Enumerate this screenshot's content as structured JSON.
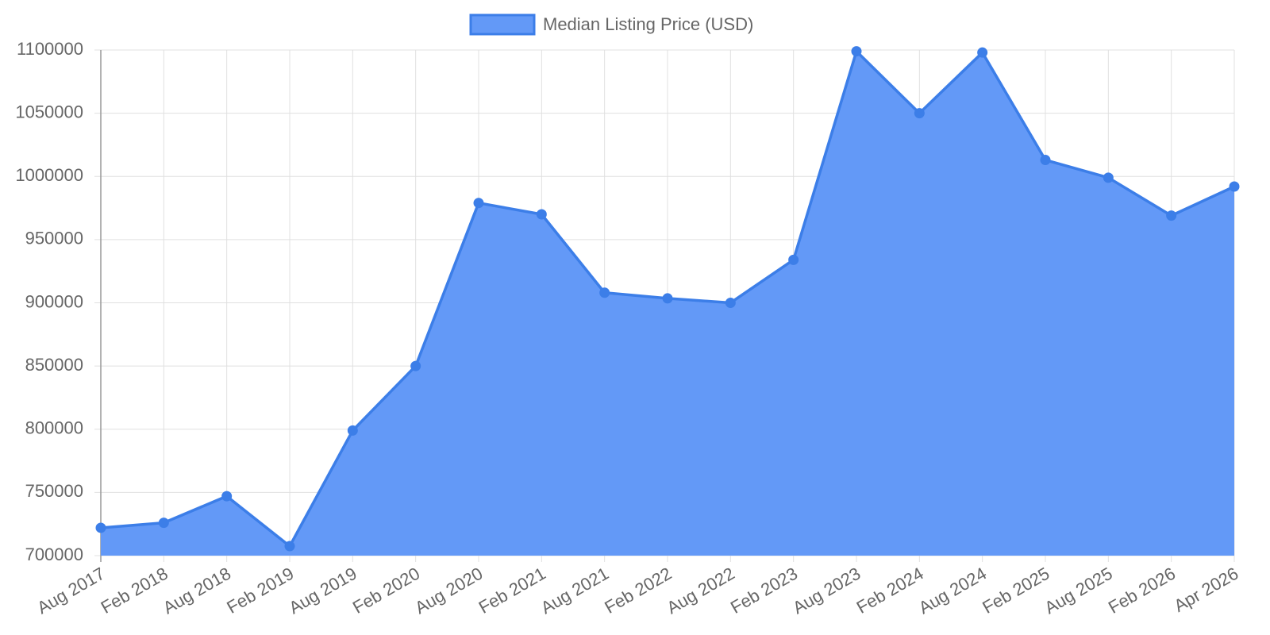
{
  "chart_data": {
    "type": "area",
    "categories": [
      "Aug 2017",
      "Feb 2018",
      "Aug 2018",
      "Feb 2019",
      "Aug 2019",
      "Feb 2020",
      "Aug 2020",
      "Feb 2021",
      "Aug 2021",
      "Feb 2022",
      "Aug 2022",
      "Feb 2023",
      "Aug 2023",
      "Feb 2024",
      "Aug 2024",
      "Feb 2025",
      "Aug 2025",
      "Feb 2026",
      "Apr 2026"
    ],
    "series": [
      {
        "name": "Median Listing Price (USD)",
        "color": "#3c7ee8",
        "fill": "#6399f7",
        "values": [
          722000,
          726000,
          747000,
          707500,
          799000,
          850000,
          979000,
          970000,
          908000,
          903500,
          900000,
          934000,
          1099000,
          1050000,
          1098000,
          1013000,
          999000,
          969000,
          992000
        ]
      }
    ],
    "ylim": [
      700000,
      1100000
    ],
    "yticks": [
      700000,
      750000,
      800000,
      850000,
      900000,
      950000,
      1000000,
      1050000,
      1100000
    ],
    "grid": true,
    "legend": "top"
  }
}
